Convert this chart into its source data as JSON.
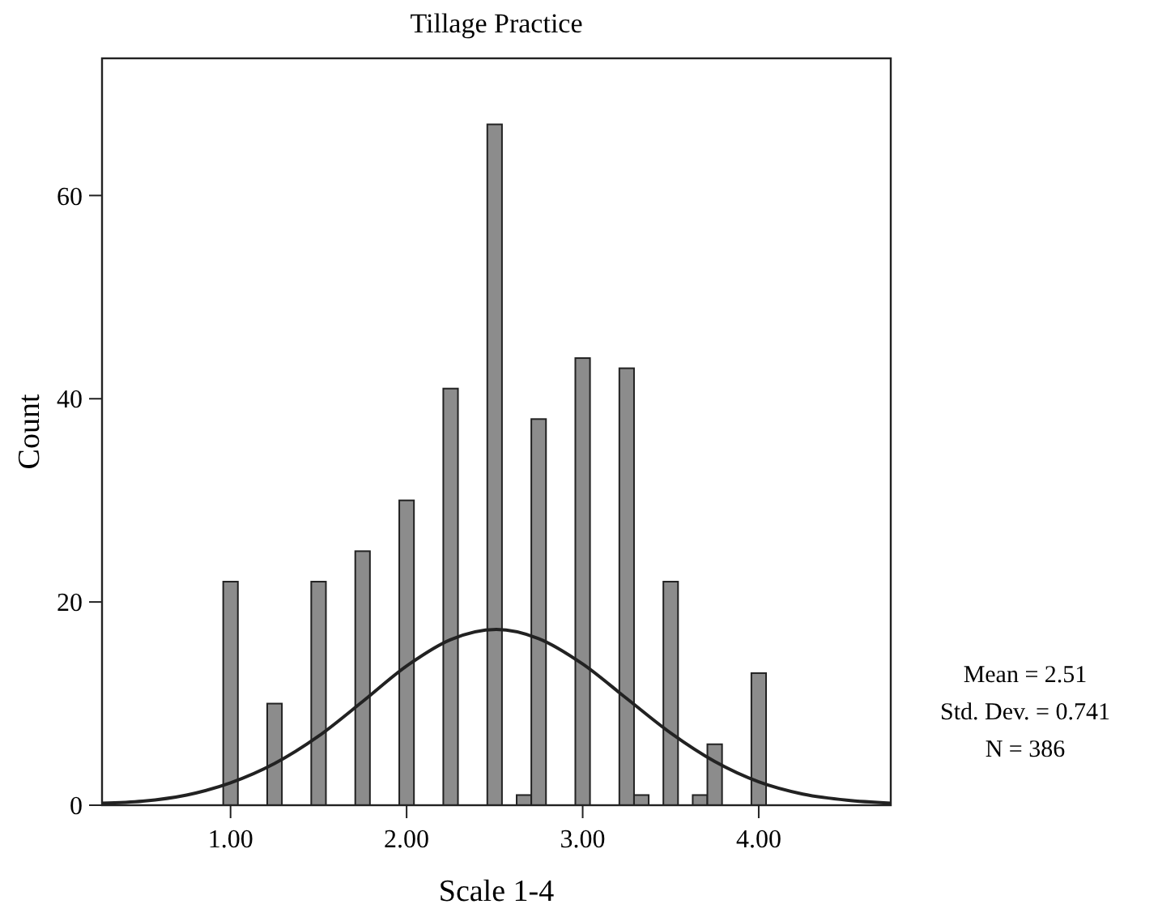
{
  "chart_data": {
    "type": "histogram",
    "title": "Tillage Practice",
    "xlabel": "Scale 1-4",
    "ylabel": "Count",
    "bins": [
      0.9583,
      1.0417,
      1.125,
      1.2083,
      1.2917,
      1.375,
      1.4583,
      1.5417,
      1.625,
      1.7083,
      1.7917,
      1.875,
      1.9583,
      2.0417,
      2.125,
      2.2083,
      2.2917,
      2.375,
      2.4583,
      2.5417,
      2.625,
      2.7083,
      2.7917,
      2.875,
      2.9583,
      3.0417,
      3.125,
      3.2083,
      3.2917,
      3.375,
      3.4583,
      3.5417,
      3.625,
      3.7083,
      3.7917,
      3.875,
      3.9583,
      4.0417
    ],
    "values": [
      22,
      0,
      0,
      10,
      0,
      0,
      22,
      0,
      0,
      25,
      0,
      0,
      30,
      0,
      0,
      41,
      0,
      0,
      67,
      0,
      1,
      38,
      0,
      0,
      44,
      0,
      0,
      43,
      1,
      0,
      22,
      0,
      1,
      6,
      0,
      0,
      13
    ],
    "color": "#8c8c8c",
    "series": [
      {
        "type": "line",
        "color": "#222222",
        "x": [
          0.27,
          0.5,
          0.75,
          1.0,
          1.25,
          1.5,
          1.75,
          2.0,
          2.25,
          2.51,
          2.75,
          3.0,
          3.25,
          3.5,
          3.75,
          4.0,
          4.25,
          4.5,
          4.75
        ],
        "values": [
          0.2,
          0.4,
          1.0,
          2.2,
          4.1,
          6.8,
          10.2,
          13.7,
          16.3,
          17.3,
          16.4,
          13.9,
          10.5,
          7.1,
          4.3,
          2.3,
          1.1,
          0.5,
          0.2
        ]
      }
    ],
    "xlim": [
      0.27,
      4.75
    ],
    "ylim": [
      0,
      73.5
    ],
    "xticks": [
      {
        "value": 1,
        "label": "1.00"
      },
      {
        "value": 2,
        "label": "2.00"
      },
      {
        "value": 3,
        "label": "3.00"
      },
      {
        "value": 4,
        "label": "4.00"
      }
    ],
    "yticks": [
      0,
      20,
      40,
      60
    ],
    "grid": false,
    "annotations": [
      "Mean = 2.51",
      "Std. Dev. = 0.741",
      "N = 386"
    ]
  }
}
